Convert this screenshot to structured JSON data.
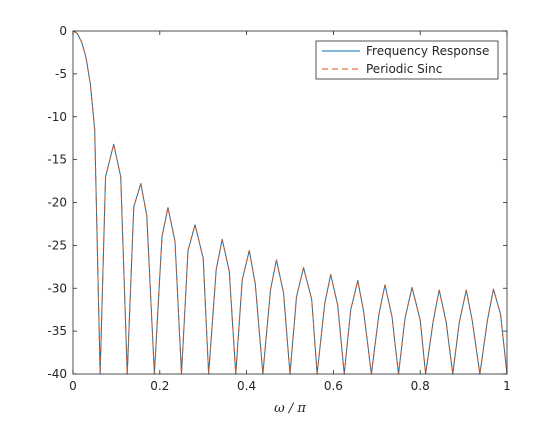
{
  "chart_data": {
    "type": "line",
    "title": "",
    "xlabel": "ω / π",
    "ylabel": "",
    "xlim": [
      0,
      1
    ],
    "ylim": [
      -40,
      0
    ],
    "xticks": [
      0,
      0.2,
      0.4,
      0.6,
      0.8,
      1
    ],
    "xtick_labels": [
      "0",
      "0.2",
      "0.4",
      "0.6",
      "0.8",
      "1"
    ],
    "yticks": [
      0,
      -5,
      -10,
      -15,
      -20,
      -25,
      -30,
      -35,
      -40
    ],
    "ytick_labels": [
      "0",
      "-5",
      "-10",
      "-15",
      "-20",
      "-25",
      "-30",
      "-35",
      "-40"
    ],
    "grid": false,
    "legend_position": "top-right",
    "series": [
      {
        "name": "Frequency Response",
        "color": "#0072bd",
        "style": "solid",
        "x": [
          0,
          0.01,
          0.02,
          0.03,
          0.04,
          0.05,
          0.0625,
          0.075,
          0.0938,
          0.11,
          0.125,
          0.14,
          0.1562,
          0.17,
          0.1875,
          0.205,
          0.2188,
          0.235,
          0.25,
          0.265,
          0.2812,
          0.3,
          0.3125,
          0.33,
          0.3438,
          0.36,
          0.375,
          0.39,
          0.4062,
          0.42,
          0.4375,
          0.455,
          0.4688,
          0.485,
          0.5,
          0.515,
          0.5312,
          0.55,
          0.5625,
          0.58,
          0.5938,
          0.61,
          0.625,
          0.64,
          0.6562,
          0.67,
          0.6875,
          0.705,
          0.7188,
          0.735,
          0.75,
          0.765,
          0.7812,
          0.8,
          0.8125,
          0.83,
          0.8438,
          0.86,
          0.875,
          0.89,
          0.9062,
          0.92,
          0.9375,
          0.955,
          0.9688,
          0.985,
          1.0
        ],
        "y": [
          0,
          -0.3,
          -1.3,
          -3.1,
          -6.2,
          -11.5,
          -40,
          -17,
          -13.2,
          -17,
          -40,
          -20.5,
          -17.8,
          -21.5,
          -40,
          -24,
          -20.6,
          -24.5,
          -40,
          -25.6,
          -22.6,
          -26.5,
          -40,
          -27.8,
          -24.3,
          -28,
          -40,
          -29,
          -25.6,
          -29.5,
          -40,
          -30.2,
          -26.7,
          -30.5,
          -40,
          -31,
          -27.6,
          -31.3,
          -40,
          -31.8,
          -28.4,
          -32,
          -40,
          -32.5,
          -29.1,
          -32.8,
          -40,
          -33,
          -29.6,
          -33.3,
          -40,
          -33.5,
          -29.9,
          -33.7,
          -40,
          -33.8,
          -30.2,
          -34,
          -40,
          -34,
          -30.2,
          -33.8,
          -40,
          -33.7,
          -30.1,
          -33,
          -40
        ]
      },
      {
        "name": "Periodic Sinc",
        "color": "#d95319",
        "style": "dashed",
        "x": [
          0,
          0.01,
          0.02,
          0.03,
          0.04,
          0.05,
          0.0625,
          0.075,
          0.0938,
          0.11,
          0.125,
          0.14,
          0.1562,
          0.17,
          0.1875,
          0.205,
          0.2188,
          0.235,
          0.25,
          0.265,
          0.2812,
          0.3,
          0.3125,
          0.33,
          0.3438,
          0.36,
          0.375,
          0.39,
          0.4062,
          0.42,
          0.4375,
          0.455,
          0.4688,
          0.485,
          0.5,
          0.515,
          0.5312,
          0.55,
          0.5625,
          0.58,
          0.5938,
          0.61,
          0.625,
          0.64,
          0.6562,
          0.67,
          0.6875,
          0.705,
          0.7188,
          0.735,
          0.75,
          0.765,
          0.7812,
          0.8,
          0.8125,
          0.83,
          0.8438,
          0.86,
          0.875,
          0.89,
          0.9062,
          0.92,
          0.9375,
          0.955,
          0.9688,
          0.985,
          1.0
        ],
        "y": [
          0,
          -0.3,
          -1.3,
          -3.1,
          -6.2,
          -11.5,
          -40,
          -17,
          -13.2,
          -17,
          -40,
          -20.5,
          -17.8,
          -21.5,
          -40,
          -24,
          -20.6,
          -24.5,
          -40,
          -25.6,
          -22.6,
          -26.5,
          -40,
          -27.8,
          -24.3,
          -28,
          -40,
          -29,
          -25.6,
          -29.5,
          -40,
          -30.2,
          -26.7,
          -30.5,
          -40,
          -31,
          -27.6,
          -31.3,
          -40,
          -31.8,
          -28.4,
          -32,
          -40,
          -32.5,
          -29.1,
          -32.8,
          -40,
          -33,
          -29.6,
          -33.3,
          -40,
          -33.5,
          -29.9,
          -33.7,
          -40,
          -33.8,
          -30.2,
          -34,
          -40,
          -34,
          -30.2,
          -33.8,
          -40,
          -33.7,
          -30.1,
          -33,
          -40
        ]
      }
    ]
  }
}
